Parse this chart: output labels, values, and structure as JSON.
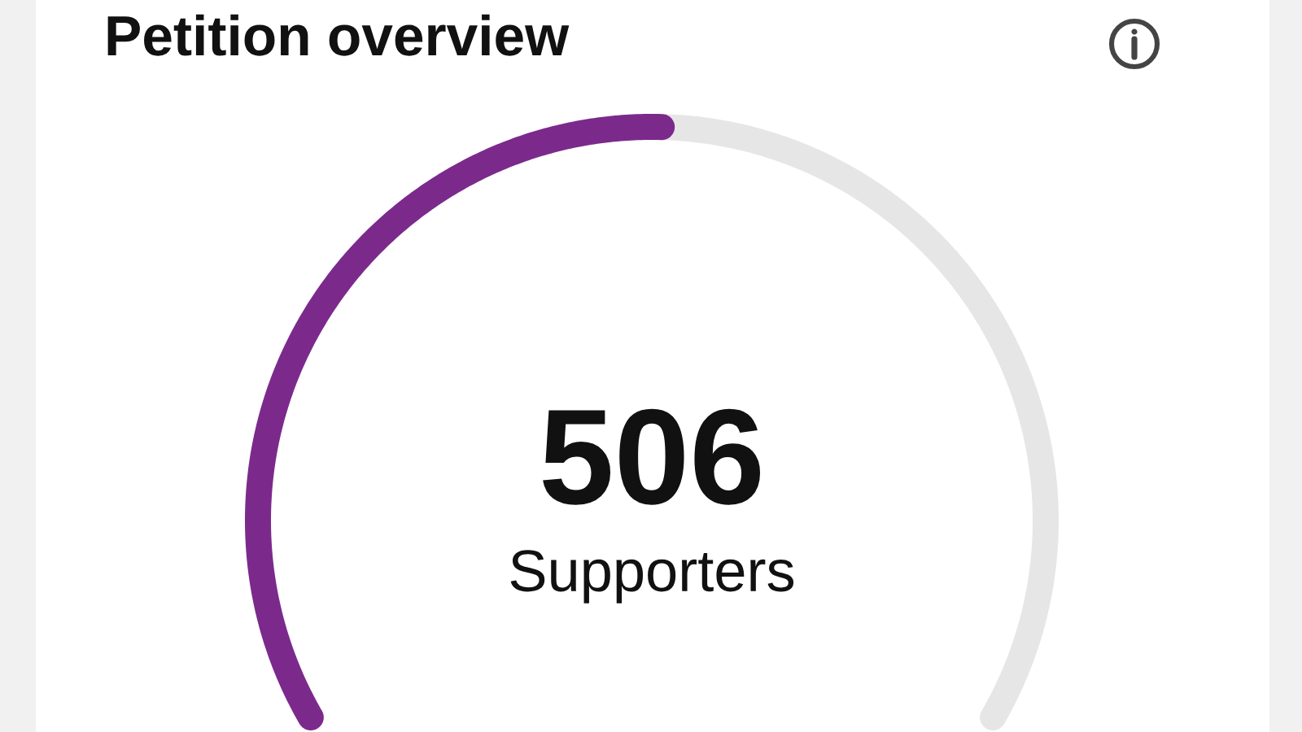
{
  "chart_data": {
    "type": "donut",
    "title": "Petition overview",
    "categories": [
      null,
      null
    ],
    "values": [
      50.6,
      49.4
    ],
    "colors": [
      "#7b2a8c",
      "#e6e6e6"
    ],
    "annotations": [
      "506",
      "Supporters"
    ]
  }
}
